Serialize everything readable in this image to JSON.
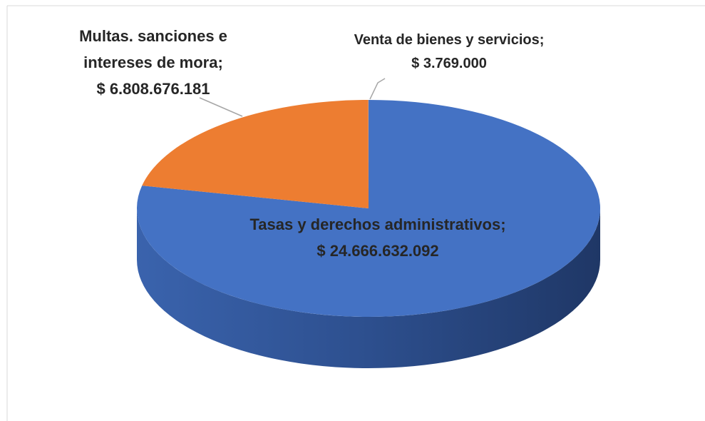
{
  "chart_data": {
    "type": "pie",
    "categories": [
      "Tasas y derechos administrativos;",
      "Multas. sanciones e intereses de mora;",
      "Venta de bienes y servicios;"
    ],
    "values": [
      24666632092,
      6808676181,
      3769000
    ],
    "value_labels": [
      "$ 24.666.632.092",
      "$ 6.808.676.181",
      "$ 3.769.000"
    ],
    "colors": [
      "#4472c4",
      "#ed7d31",
      "#a5a5a5"
    ]
  }
}
